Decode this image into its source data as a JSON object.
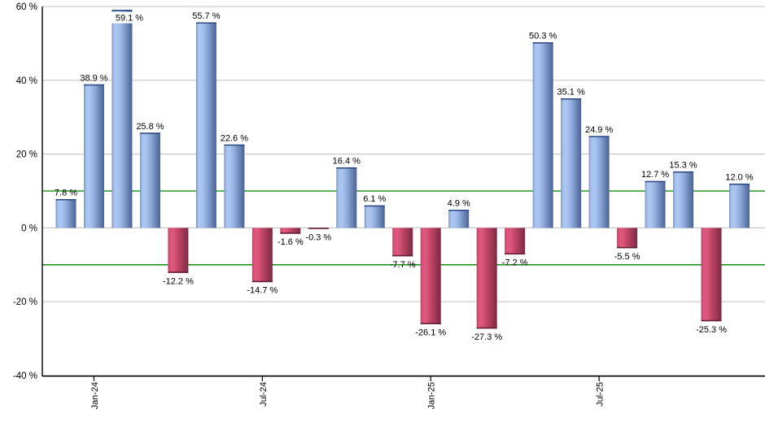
{
  "chart_data": {
    "type": "bar",
    "title": "",
    "xlabel": "",
    "ylabel": "",
    "ylim": [
      -40,
      60
    ],
    "grid": true,
    "legend": "none",
    "values": [
      7.8,
      38.9,
      59.1,
      25.8,
      -12.2,
      55.7,
      22.6,
      -14.7,
      -1.6,
      -0.3,
      16.4,
      6.1,
      -7.7,
      -26.1,
      4.9,
      -27.3,
      -7.2,
      50.3,
      35.1,
      24.9,
      -5.5,
      12.7,
      15.3,
      -25.3,
      12.0
    ],
    "bar_labels": [
      "7.8 %",
      "38.9 %",
      "59.1 %",
      "25.8 %",
      "-12.2 %",
      "55.7 %",
      "22.6 %",
      "-14.7 %",
      "-1.6 %",
      "-0.3 %",
      "16.4 %",
      "6.1 %",
      "-7.7 %",
      "-26.1 %",
      "4.9 %",
      "-27.3 %",
      "-7.2 %",
      "50.3 %",
      "35.1 %",
      "24.9 %",
      "-5.5 %",
      "12.7 %",
      "15.3 %",
      "-25.3 %",
      "12.0 %"
    ],
    "y_ticks": [
      {
        "value": 60,
        "label": "60 %"
      },
      {
        "value": 40,
        "label": "40 %"
      },
      {
        "value": 20,
        "label": "20 %"
      },
      {
        "value": 0,
        "label": "0 %"
      },
      {
        "value": -20,
        "label": "-20 %"
      },
      {
        "value": -40,
        "label": "-40 %"
      }
    ],
    "x_ticks": [
      {
        "bar_index": 1,
        "label": "Jan-24"
      },
      {
        "bar_index": 7,
        "label": "Jul-24"
      },
      {
        "bar_index": 13,
        "label": "Jan-25"
      },
      {
        "bar_index": 19,
        "label": "Jul-25"
      }
    ],
    "threshold_lines": {
      "values": [
        10,
        -10
      ],
      "color": "#008000"
    },
    "gridline_values": [
      60,
      40,
      20,
      0,
      -20
    ],
    "colors": {
      "background": "#ffffff",
      "gridline": "#c9c9c9",
      "axis": "#000000",
      "label_text": "#000000",
      "threshold": "#008000",
      "positive_edge": "#7593c5",
      "positive_highlight": "#abc5f1",
      "positive_mid": "#93afdf",
      "positive_dark": "#4a6294",
      "positive_cap": "#2a4780",
      "negative_edge": "#bc4065",
      "negative_highlight": "#de567d",
      "negative_mid": "#c04666",
      "negative_dark": "#7d2944",
      "negative_cap": "#5e1e35",
      "inside_label_bg": "#ffffff"
    }
  }
}
